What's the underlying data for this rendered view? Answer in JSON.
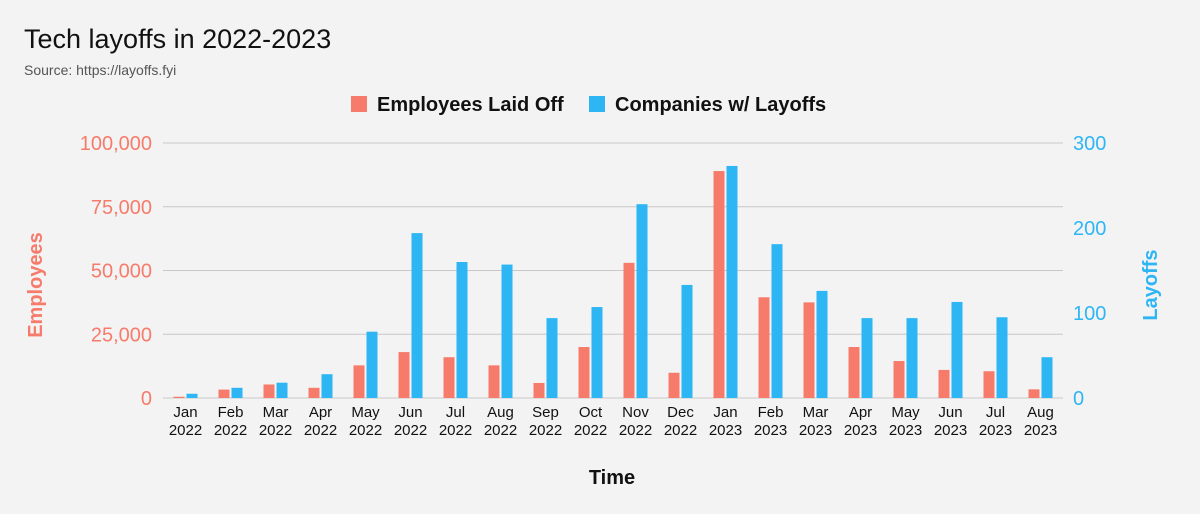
{
  "title": "Tech layoffs in 2022-2023",
  "subtitle": "Source: https://layoffs.fyi",
  "colors": {
    "employees": "#f77b6b",
    "companies": "#2eb6f4",
    "grid": "#c8c8c8",
    "axis_text": "#111111"
  },
  "chart_data": {
    "type": "bar",
    "categories": [
      [
        "Jan",
        "2022"
      ],
      [
        "Feb",
        "2022"
      ],
      [
        "Mar",
        "2022"
      ],
      [
        "Apr",
        "2022"
      ],
      [
        "May",
        "2022"
      ],
      [
        "Jun",
        "2022"
      ],
      [
        "Jul",
        "2022"
      ],
      [
        "Aug",
        "2022"
      ],
      [
        "Sep",
        "2022"
      ],
      [
        "Oct",
        "2022"
      ],
      [
        "Nov",
        "2022"
      ],
      [
        "Dec",
        "2022"
      ],
      [
        "Jan",
        "2023"
      ],
      [
        "Feb",
        "2023"
      ],
      [
        "Mar",
        "2023"
      ],
      [
        "Apr",
        "2023"
      ],
      [
        "May",
        "2023"
      ],
      [
        "Jun",
        "2023"
      ],
      [
        "Jul",
        "2023"
      ],
      [
        "Aug",
        "2023"
      ]
    ],
    "series": [
      {
        "name": "Employees Laid Off",
        "axis": "left",
        "values": [
          500,
          3300,
          5300,
          4000,
          12800,
          18000,
          16000,
          12800,
          5900,
          20000,
          53000,
          9900,
          89000,
          39500,
          37500,
          20000,
          14500,
          11000,
          10500,
          3400
        ]
      },
      {
        "name": "Companies w/ Layoffs",
        "axis": "right",
        "values": [
          5,
          12,
          18,
          28,
          78,
          194,
          160,
          157,
          94,
          107,
          228,
          133,
          273,
          181,
          126,
          94,
          94,
          113,
          95,
          48
        ]
      }
    ],
    "xlabel": "Time",
    "ylabel_left": "Employees",
    "ylabel_right": "Layoffs",
    "ylim_left": [
      0,
      100000
    ],
    "ylim_right": [
      0,
      300
    ],
    "yticks_left": [
      "0",
      "25,000",
      "50,000",
      "75,000",
      "100,000"
    ],
    "yticks_right": [
      "0",
      "100",
      "200",
      "300"
    ],
    "grid": true,
    "legend_position": "top-center"
  }
}
